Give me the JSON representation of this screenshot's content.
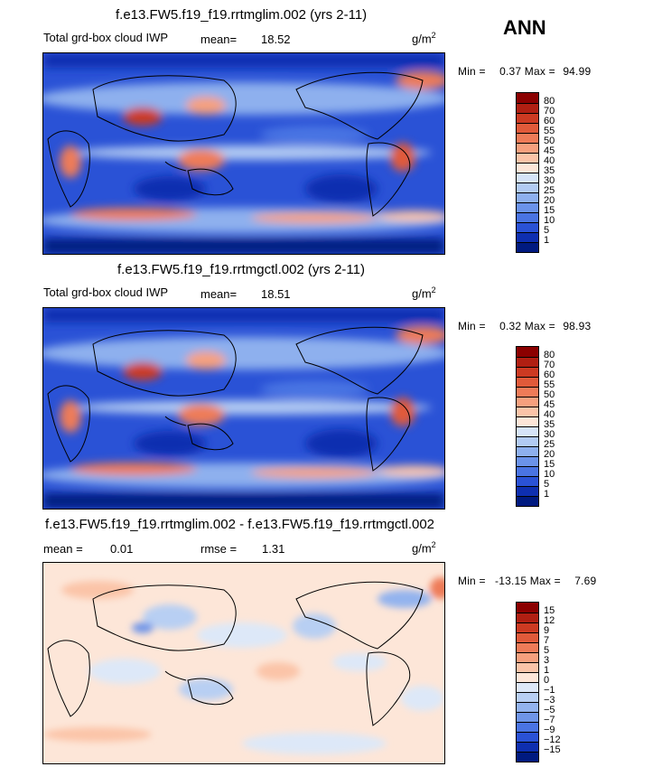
{
  "season": "ANN",
  "chart_data": [
    {
      "type": "heatmap",
      "title": "f.e13.FW5.f19_f19.rrtmglim.002 (yrs 2-11)",
      "variable": "Total grd-box cloud IWP",
      "mean_label": "mean=",
      "mean": "18.52",
      "units": "g/m",
      "units_exp": "2",
      "min_label": "Min =",
      "min": "0.37",
      "max_label": "Max =",
      "max": "94.99",
      "levels": [
        "80",
        "70",
        "60",
        "55",
        "50",
        "45",
        "40",
        "35",
        "30",
        "25",
        "20",
        "15",
        "10",
        "5",
        "1"
      ],
      "colors": [
        "#8b0000",
        "#b01f12",
        "#cc3a22",
        "#e05a3a",
        "#ee7b58",
        "#f6a07e",
        "#fbc4a8",
        "#fde6d8",
        "#d6e4f8",
        "#b2cbf3",
        "#8eb0ee",
        "#6b93ea",
        "#4a74e3",
        "#2a52d6",
        "#0e2fb0",
        "#001a80"
      ]
    },
    {
      "type": "heatmap",
      "title": "f.e13.FW5.f19_f19.rrtmgctl.002 (yrs 2-11)",
      "variable": "Total grd-box cloud IWP",
      "mean_label": "mean=",
      "mean": "18.51",
      "units": "g/m",
      "units_exp": "2",
      "min_label": "Min =",
      "min": "0.32",
      "max_label": "Max =",
      "max": "98.93",
      "levels": [
        "80",
        "70",
        "60",
        "55",
        "50",
        "45",
        "40",
        "35",
        "30",
        "25",
        "20",
        "15",
        "10",
        "5",
        "1"
      ],
      "colors": [
        "#8b0000",
        "#b01f12",
        "#cc3a22",
        "#e05a3a",
        "#ee7b58",
        "#f6a07e",
        "#fbc4a8",
        "#fde6d8",
        "#d6e4f8",
        "#b2cbf3",
        "#8eb0ee",
        "#6b93ea",
        "#4a74e3",
        "#2a52d6",
        "#0e2fb0",
        "#001a80"
      ]
    },
    {
      "type": "heatmap",
      "title": "f.e13.FW5.f19_f19.rrtmglim.002 - f.e13.FW5.f19_f19.rrtmgctl.002",
      "mean_label": "mean =",
      "mean": "0.01",
      "rmse_label": "rmse =",
      "rmse": "1.31",
      "units": "g/m",
      "units_exp": "2",
      "min_label": "Min =",
      "min": "-13.15",
      "max_label": "Max =",
      "max": "7.69",
      "levels": [
        "15",
        "12",
        "9",
        "7",
        "5",
        "3",
        "1",
        "0",
        "−1",
        "−3",
        "−5",
        "−7",
        "−9",
        "−12",
        "−15"
      ],
      "colors": [
        "#8b0000",
        "#b01f12",
        "#cc3a22",
        "#e05a3a",
        "#ee7b58",
        "#f6a07e",
        "#fbc4a8",
        "#fde6d8",
        "#dde8f8",
        "#b8cff3",
        "#93b3ee",
        "#6f95e8",
        "#4a74e3",
        "#2a52d6",
        "#0e2fb0",
        "#001a80"
      ]
    }
  ]
}
